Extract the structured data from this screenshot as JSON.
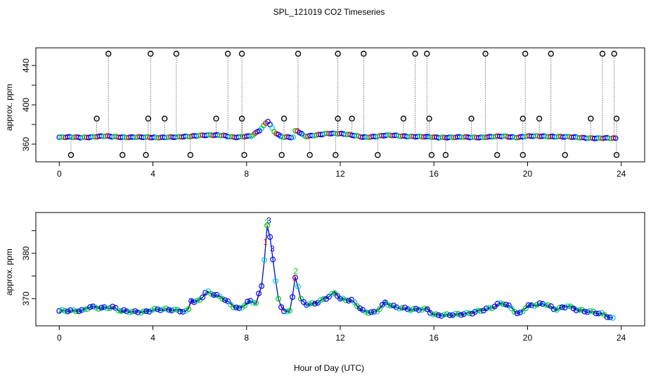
{
  "chart_data": [
    {
      "type": "scatter",
      "title": "SPL_121019  CO2 Timeseries",
      "xlabel": "",
      "ylabel": "approx. ppm",
      "xlim": [
        -1,
        25
      ],
      "ylim": [
        342,
        458
      ],
      "xticks": [
        0,
        4,
        8,
        12,
        16,
        20,
        24
      ],
      "yticks": [
        360,
        400,
        440
      ],
      "ytick_labels": [
        "360",
        "400",
        "440"
      ],
      "baseline": [
        [
          0,
          367
        ],
        [
          1,
          367
        ],
        [
          2,
          368
        ],
        [
          3,
          367
        ],
        [
          4,
          367
        ],
        [
          5,
          367
        ],
        [
          6,
          369
        ],
        [
          7,
          369
        ],
        [
          7.5,
          367
        ],
        [
          8.2,
          368
        ],
        [
          8.6,
          375
        ],
        [
          8.9,
          384
        ],
        [
          9.2,
          372
        ],
        [
          9.5,
          367
        ],
        [
          10,
          367
        ],
        [
          10.1,
          375
        ],
        [
          10.5,
          368
        ],
        [
          11,
          369
        ],
        [
          11.5,
          371
        ],
        [
          12,
          371
        ],
        [
          12.5,
          369
        ],
        [
          13,
          367
        ],
        [
          14,
          369
        ],
        [
          15,
          368
        ],
        [
          16,
          367
        ],
        [
          17,
          367
        ],
        [
          18,
          367
        ],
        [
          19,
          368
        ],
        [
          19.5,
          367
        ],
        [
          20,
          368
        ],
        [
          21,
          368
        ],
        [
          22,
          367
        ],
        [
          23,
          366
        ],
        [
          23.8,
          366
        ]
      ],
      "outliers_high": [
        {
          "x": 2.1,
          "y": 452
        },
        {
          "x": 3.9,
          "y": 452
        },
        {
          "x": 5.0,
          "y": 452
        },
        {
          "x": 7.2,
          "y": 452
        },
        {
          "x": 7.8,
          "y": 452
        },
        {
          "x": 10.2,
          "y": 452
        },
        {
          "x": 11.9,
          "y": 452
        },
        {
          "x": 13.0,
          "y": 452
        },
        {
          "x": 15.2,
          "y": 452
        },
        {
          "x": 15.7,
          "y": 452
        },
        {
          "x": 18.2,
          "y": 452
        },
        {
          "x": 19.9,
          "y": 452
        },
        {
          "x": 21.0,
          "y": 452
        },
        {
          "x": 23.2,
          "y": 452
        },
        {
          "x": 23.7,
          "y": 452
        }
      ],
      "outliers_mid": [
        {
          "x": 1.6,
          "y": 386
        },
        {
          "x": 3.8,
          "y": 386
        },
        {
          "x": 4.5,
          "y": 386
        },
        {
          "x": 6.7,
          "y": 386
        },
        {
          "x": 7.8,
          "y": 386
        },
        {
          "x": 9.6,
          "y": 386
        },
        {
          "x": 11.9,
          "y": 386
        },
        {
          "x": 12.5,
          "y": 386
        },
        {
          "x": 14.7,
          "y": 386
        },
        {
          "x": 15.8,
          "y": 386
        },
        {
          "x": 17.6,
          "y": 386
        },
        {
          "x": 19.8,
          "y": 386
        },
        {
          "x": 20.5,
          "y": 386
        },
        {
          "x": 22.7,
          "y": 386
        },
        {
          "x": 23.8,
          "y": 386
        }
      ],
      "outliers_low": [
        {
          "x": 0.5,
          "y": 349
        },
        {
          "x": 2.7,
          "y": 349
        },
        {
          "x": 3.7,
          "y": 349
        },
        {
          "x": 5.6,
          "y": 349
        },
        {
          "x": 7.9,
          "y": 349
        },
        {
          "x": 9.5,
          "y": 349
        },
        {
          "x": 10.7,
          "y": 349
        },
        {
          "x": 11.8,
          "y": 349
        },
        {
          "x": 13.6,
          "y": 349
        },
        {
          "x": 15.9,
          "y": 349
        },
        {
          "x": 16.5,
          "y": 349
        },
        {
          "x": 18.7,
          "y": 349
        },
        {
          "x": 19.8,
          "y": 349
        },
        {
          "x": 21.6,
          "y": 349
        },
        {
          "x": 23.8,
          "y": 349
        }
      ]
    },
    {
      "type": "line",
      "title": "",
      "xlabel": "Hour of Day (UTC)",
      "ylabel": "approx. ppm",
      "xlim": [
        -1,
        25
      ],
      "ylim": [
        364,
        389
      ],
      "xticks": [
        0,
        4,
        8,
        12,
        16,
        20,
        24
      ],
      "yticks": [
        370,
        380
      ],
      "ytick_labels": [
        "370",
        "380"
      ],
      "series": [
        {
          "name": "1",
          "color": "#ff0000"
        },
        {
          "name": "2",
          "color": "#00cc00"
        },
        {
          "name": "3",
          "color": "#0000ff"
        }
      ],
      "points": [
        [
          0,
          367.3
        ],
        [
          0.6,
          367.2
        ],
        [
          1.0,
          367.3
        ],
        [
          1.3,
          368.3
        ],
        [
          1.8,
          368.0
        ],
        [
          2.3,
          368.0
        ],
        [
          2.6,
          367.2
        ],
        [
          3.0,
          367.1
        ],
        [
          3.7,
          367.2
        ],
        [
          4.0,
          367.6
        ],
        [
          4.5,
          367.5
        ],
        [
          5.0,
          367.4
        ],
        [
          5.5,
          367.2
        ],
        [
          5.6,
          370.0
        ],
        [
          5.8,
          369.2
        ],
        [
          6.0,
          369.8
        ],
        [
          6.3,
          371.5
        ],
        [
          6.6,
          370.8
        ],
        [
          7.0,
          370.0
        ],
        [
          7.4,
          368.5
        ],
        [
          7.7,
          367.8
        ],
        [
          8.1,
          369.5
        ],
        [
          8.4,
          369.0
        ],
        [
          8.7,
          373.5
        ],
        [
          8.8,
          382.0
        ],
        [
          8.9,
          387.0
        ],
        [
          9.05,
          381.5
        ],
        [
          9.2,
          375.5
        ],
        [
          9.4,
          368.5
        ],
        [
          9.6,
          367.5
        ],
        [
          9.9,
          367.2
        ],
        [
          10.0,
          372.5
        ],
        [
          10.1,
          375.5
        ],
        [
          10.3,
          369.8
        ],
        [
          10.6,
          368.5
        ],
        [
          11.0,
          369.0
        ],
        [
          11.5,
          370.5
        ],
        [
          11.8,
          371.5
        ],
        [
          12.0,
          370.0
        ],
        [
          12.5,
          369.5
        ],
        [
          13.0,
          367.0
        ],
        [
          13.5,
          367.0
        ],
        [
          13.9,
          369.2
        ],
        [
          14.4,
          368.0
        ],
        [
          15.0,
          367.5
        ],
        [
          15.7,
          367.8
        ],
        [
          16.0,
          366.5
        ],
        [
          16.5,
          366.3
        ],
        [
          17.0,
          366.4
        ],
        [
          17.5,
          366.8
        ],
        [
          18.0,
          367.5
        ],
        [
          18.5,
          368.0
        ],
        [
          18.9,
          369.0
        ],
        [
          19.3,
          368.0
        ],
        [
          19.6,
          366.5
        ],
        [
          20.0,
          368.5
        ],
        [
          20.7,
          368.8
        ],
        [
          21.2,
          367.5
        ],
        [
          21.7,
          368.5
        ],
        [
          22.2,
          367.5
        ],
        [
          22.7,
          367.0
        ],
        [
          23.2,
          366.5
        ],
        [
          23.7,
          365.5
        ]
      ]
    }
  ]
}
